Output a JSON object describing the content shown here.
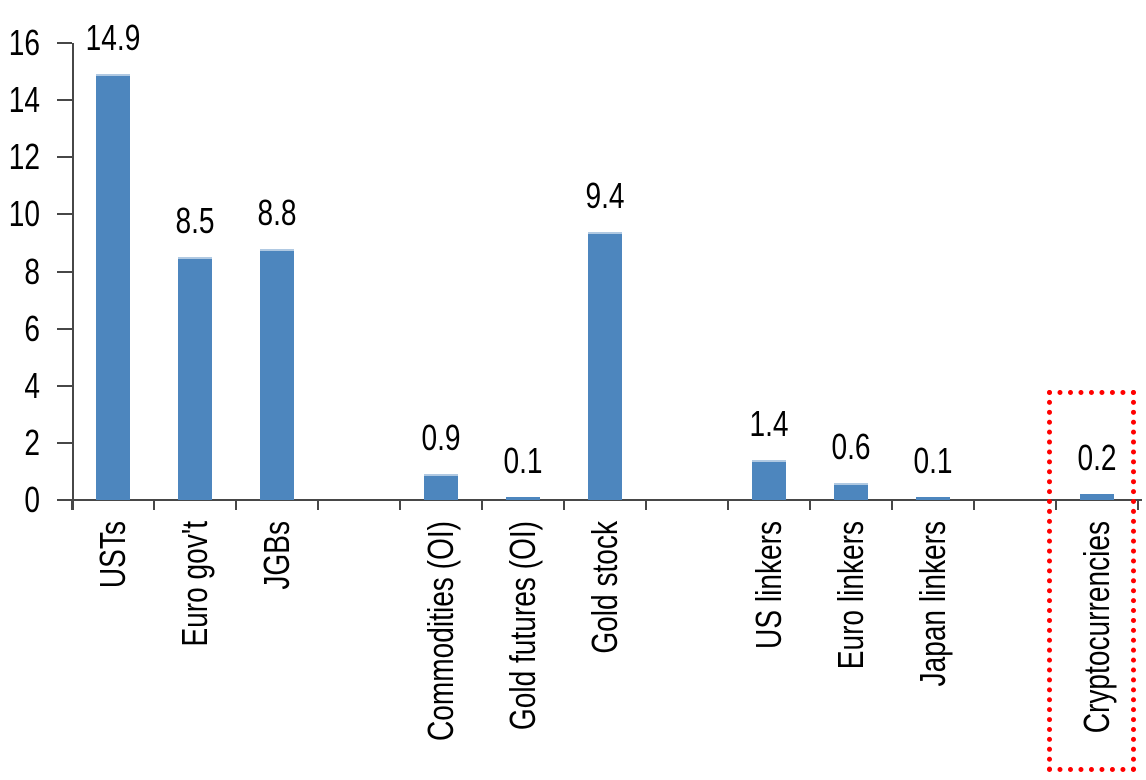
{
  "chart_data": {
    "type": "bar",
    "title": "",
    "xlabel": "",
    "ylabel": "",
    "categories": [
      "USTs",
      "Euro gov't",
      "JGBs",
      "Commodities (OI)",
      "Gold futures (OI)",
      "Gold stock",
      "US linkers",
      "Euro linkers",
      "Japan linkers",
      "Cryptocurrencies"
    ],
    "values": [
      14.9,
      8.5,
      8.8,
      0.9,
      0.1,
      9.4,
      1.4,
      0.6,
      0.1,
      0.2
    ],
    "value_labels": [
      "14.9",
      "8.5",
      "8.8",
      "0.9",
      "0.1",
      "9.4",
      "1.4",
      "0.6",
      "0.1",
      "0.2"
    ],
    "slots": [
      0,
      1,
      2,
      4,
      5,
      6,
      8,
      9,
      10,
      12
    ],
    "total_slots": 13,
    "ylim": [
      0,
      16
    ],
    "ytick_step": 2,
    "ytick_labels": [
      "0",
      "2",
      "4",
      "6",
      "8",
      "10",
      "12",
      "14",
      "16"
    ],
    "grid": false,
    "legend": null,
    "category_label_rotation": -90,
    "bar_color": "#4d86be",
    "bar_top_edge_color": "#b0c9e2",
    "axis_color": "#474747",
    "text_color": "#000000",
    "highlight": {
      "category": "Cryptocurrencies",
      "style": "dotted-outline",
      "box_color": "#ff0000"
    }
  }
}
